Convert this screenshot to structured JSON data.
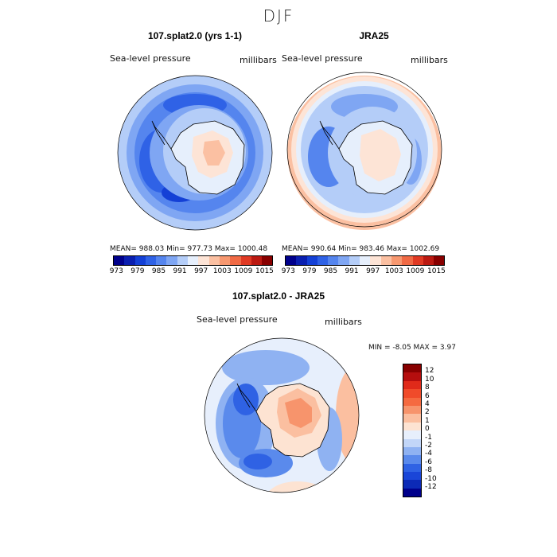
{
  "title": "DJF",
  "panels": [
    {
      "title": "107.splat2.0 (yrs 1-1)",
      "left_label": "Sea-level pressure",
      "right_label": "millibars",
      "stats": "MEAN= 988.03   Min= 977.73   Max= 1000.48"
    },
    {
      "title": "JRA25",
      "left_label": "Sea-level pressure",
      "right_label": "millibars",
      "stats": "MEAN= 990.64   Min= 983.46   Max= 1002.69"
    },
    {
      "title": "107.splat2.0 - JRA25",
      "left_label": "Sea-level pressure",
      "right_label": "millibars",
      "stats": "MIN =   -8.05 MAX =    3.97"
    }
  ],
  "colorbar_abs": {
    "colors": [
      "#00008b",
      "#0a1fb0",
      "#1440d6",
      "#2f62e6",
      "#5585ee",
      "#7fa6f3",
      "#b4cdf8",
      "#e6effc",
      "#fde4d6",
      "#fbc0a2",
      "#f79870",
      "#f06a45",
      "#e03a24",
      "#bb1a12",
      "#880000"
    ],
    "ticks": [
      "973",
      "979",
      "985",
      "991",
      "997",
      "1003",
      "1009",
      "1015"
    ]
  },
  "colorbar_diff": {
    "colors": [
      "#880000",
      "#b50e0e",
      "#e02a1a",
      "#f04b2a",
      "#f56a40",
      "#f7946c",
      "#fbbfa0",
      "#fde3d2",
      "#e7effc",
      "#c2d6f8",
      "#8fb2f2",
      "#5a8aec",
      "#2f62e4",
      "#1a46d8",
      "#0c2ab6",
      "#00008b"
    ],
    "ticks": [
      "12",
      "10",
      "8",
      "6",
      "4",
      "2",
      "1",
      "0",
      "-1",
      "-2",
      "-4",
      "-6",
      "-8",
      "-10",
      "-12"
    ]
  }
}
